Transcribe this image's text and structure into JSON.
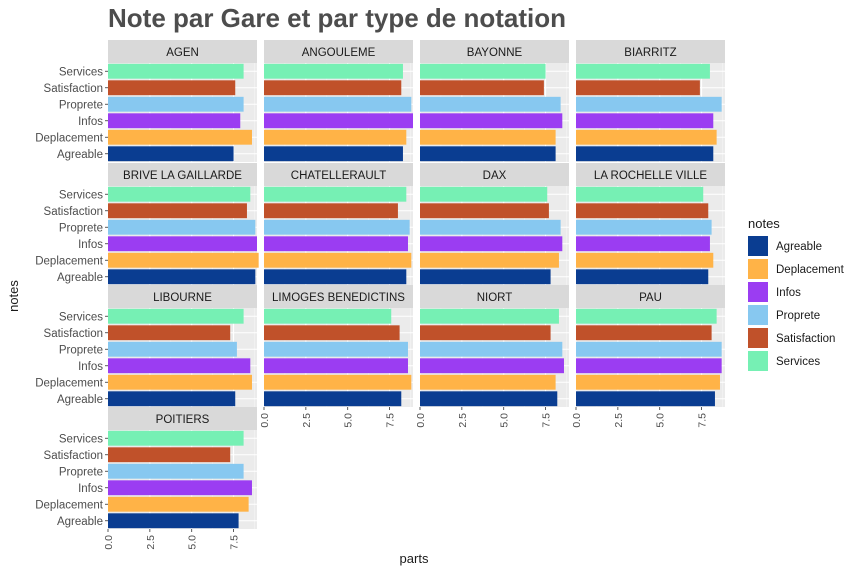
{
  "chart_data": {
    "type": "bar",
    "orientation": "horizontal",
    "faceted": true,
    "title": "Note par Gare et par type de notation",
    "xlabel": "parts",
    "ylabel": "notes",
    "legend_title": "notes",
    "legend_position": "right",
    "xlim": [
      0,
      8.9
    ],
    "xticks": [
      "0.0",
      "2.5",
      "5.0",
      "7.5"
    ],
    "categories": [
      "Services",
      "Satisfaction",
      "Proprete",
      "Infos",
      "Deplacement",
      "Agreable"
    ],
    "legend_items": [
      "Agreable",
      "Deplacement",
      "Infos",
      "Proprete",
      "Satisfaction",
      "Services"
    ],
    "colors": {
      "Agreable": "#0a3d91",
      "Deplacement": "#ffb347",
      "Infos": "#9b3df2",
      "Proprete": "#87c8f0",
      "Satisfaction": "#c0512a",
      "Services": "#76f0b4"
    },
    "grid": true,
    "panel_background": "#ebebeb",
    "strip_background": "#d9d9d9",
    "panels": [
      {
        "name": "AGEN",
        "values": {
          "Services": 8.1,
          "Satisfaction": 7.6,
          "Proprete": 8.1,
          "Infos": 7.9,
          "Deplacement": 8.6,
          "Agreable": 7.5
        }
      },
      {
        "name": "ANGOULEME",
        "values": {
          "Services": 8.3,
          "Satisfaction": 8.2,
          "Proprete": 8.8,
          "Infos": 8.9,
          "Deplacement": 8.5,
          "Agreable": 8.3
        }
      },
      {
        "name": "BAYONNE",
        "values": {
          "Services": 7.5,
          "Satisfaction": 7.4,
          "Proprete": 8.4,
          "Infos": 8.5,
          "Deplacement": 8.1,
          "Agreable": 8.1
        }
      },
      {
        "name": "BIARRITZ",
        "values": {
          "Services": 8.0,
          "Satisfaction": 7.4,
          "Proprete": 8.7,
          "Infos": 8.2,
          "Deplacement": 8.4,
          "Agreable": 8.2
        }
      },
      {
        "name": "BRIVE LA GAILLARDE",
        "values": {
          "Services": 8.5,
          "Satisfaction": 8.3,
          "Proprete": 8.8,
          "Infos": 8.9,
          "Deplacement": 9.0,
          "Agreable": 8.8
        }
      },
      {
        "name": "CHATELLERAULT",
        "values": {
          "Services": 8.5,
          "Satisfaction": 8.0,
          "Proprete": 8.7,
          "Infos": 8.6,
          "Deplacement": 8.8,
          "Agreable": 8.5
        }
      },
      {
        "name": "DAX",
        "values": {
          "Services": 7.6,
          "Satisfaction": 7.7,
          "Proprete": 8.4,
          "Infos": 8.5,
          "Deplacement": 8.3,
          "Agreable": 7.8
        }
      },
      {
        "name": "LA ROCHELLE VILLE",
        "values": {
          "Services": 7.6,
          "Satisfaction": 7.9,
          "Proprete": 8.1,
          "Infos": 8.0,
          "Deplacement": 8.2,
          "Agreable": 7.9
        }
      },
      {
        "name": "LIBOURNE",
        "values": {
          "Services": 8.1,
          "Satisfaction": 7.3,
          "Proprete": 7.7,
          "Infos": 8.5,
          "Deplacement": 8.6,
          "Agreable": 7.6
        }
      },
      {
        "name": "LIMOGES BENEDICTINS",
        "values": {
          "Services": 7.6,
          "Satisfaction": 8.1,
          "Proprete": 8.6,
          "Infos": 8.6,
          "Deplacement": 8.8,
          "Agreable": 8.2
        }
      },
      {
        "name": "NIORT",
        "values": {
          "Services": 8.3,
          "Satisfaction": 7.8,
          "Proprete": 8.5,
          "Infos": 8.6,
          "Deplacement": 8.1,
          "Agreable": 8.2
        }
      },
      {
        "name": "PAU",
        "values": {
          "Services": 8.4,
          "Satisfaction": 8.1,
          "Proprete": 8.7,
          "Infos": 8.7,
          "Deplacement": 8.6,
          "Agreable": 8.3
        }
      },
      {
        "name": "POITIERS",
        "values": {
          "Services": 8.1,
          "Satisfaction": 7.3,
          "Proprete": 8.1,
          "Infos": 8.6,
          "Deplacement": 8.4,
          "Agreable": 7.8
        }
      }
    ]
  }
}
